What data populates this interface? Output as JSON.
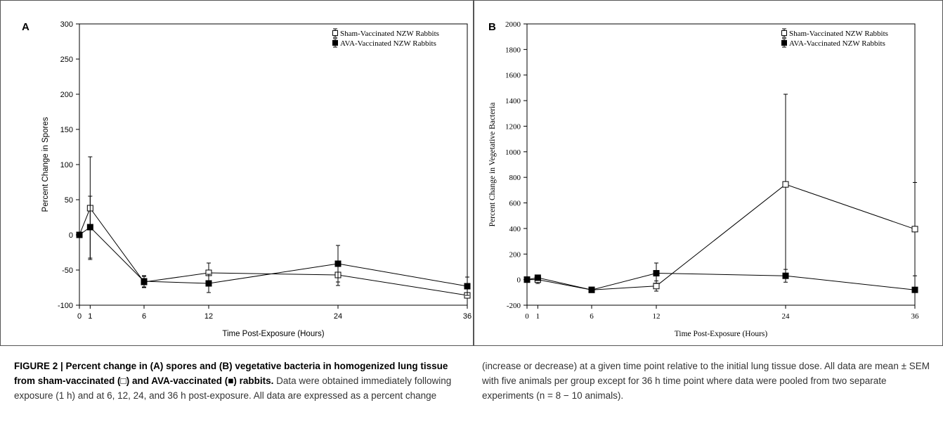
{
  "caption": {
    "bold": "FIGURE 2 | Percent change in (A) spores and (B) vegetative bacteria in homogenized lung tissue from sham-vaccinated (□) and AVA-vaccinated (■) rabbits.",
    "left_rest": " Data were obtained immediately following exposure (1 h) and at 6, 12, 24, and 36 h post-exposure. All data are expressed as a percent change",
    "right": "(increase or decrease) at a given time point relative to the initial lung tissue dose. All data are mean ± SEM with five animals per group except for 36 h time point where data were pooled from two separate experiments (n = 8 − 10 animals)."
  },
  "chart_data": [
    {
      "panel_label": "A",
      "type": "line",
      "xlabel": "Time Post-Exposure (Hours)",
      "ylabel": "Percent Change in Spores",
      "xlim": [
        0,
        36
      ],
      "ylim": [
        -100,
        300
      ],
      "xticks": [
        0,
        1,
        6,
        12,
        24,
        36
      ],
      "yticks": [
        -100,
        -50,
        0,
        50,
        100,
        150,
        200,
        250,
        300
      ],
      "legend_position": "top-right",
      "series": [
        {
          "name": "Sham-Vaccinated NZW Rabbits",
          "marker": "open-square",
          "x": [
            0,
            1,
            6,
            12,
            24,
            36
          ],
          "y": [
            0,
            38,
            -67,
            -54,
            -57,
            -86
          ],
          "err": [
            0,
            73,
            8,
            14,
            15,
            4
          ]
        },
        {
          "name": "AVA-Vaccinated NZW Rabbits",
          "marker": "filled-square",
          "x": [
            0,
            1,
            6,
            12,
            24,
            36
          ],
          "y": [
            0,
            11,
            -66,
            -69,
            -41,
            -73
          ],
          "err": [
            0,
            44,
            8,
            13,
            26,
            13
          ]
        }
      ]
    },
    {
      "panel_label": "B",
      "type": "line",
      "xlabel": "Time Post-Exposure (Hours)",
      "ylabel": "Percent Change in Vegetative Bacteria",
      "xlim": [
        0,
        36
      ],
      "ylim": [
        -200,
        2000
      ],
      "xticks": [
        0,
        1,
        6,
        12,
        24,
        36
      ],
      "yticks": [
        -200,
        0,
        200,
        400,
        600,
        800,
        1000,
        1200,
        1400,
        1600,
        1800,
        2000
      ],
      "legend_position": "top-right",
      "series": [
        {
          "name": "Sham-Vaccinated NZW Rabbits",
          "marker": "open-square",
          "x": [
            0,
            1,
            6,
            12,
            24,
            36
          ],
          "y": [
            0,
            0,
            -80,
            -50,
            745,
            395
          ],
          "err": [
            0,
            30,
            10,
            40,
            705,
            365
          ]
        },
        {
          "name": "AVA-Vaccinated NZW Rabbits",
          "marker": "filled-square",
          "x": [
            0,
            1,
            6,
            12,
            24,
            36
          ],
          "y": [
            0,
            15,
            -80,
            50,
            30,
            -80
          ],
          "err": [
            0,
            15,
            10,
            80,
            50,
            5
          ]
        }
      ]
    }
  ]
}
